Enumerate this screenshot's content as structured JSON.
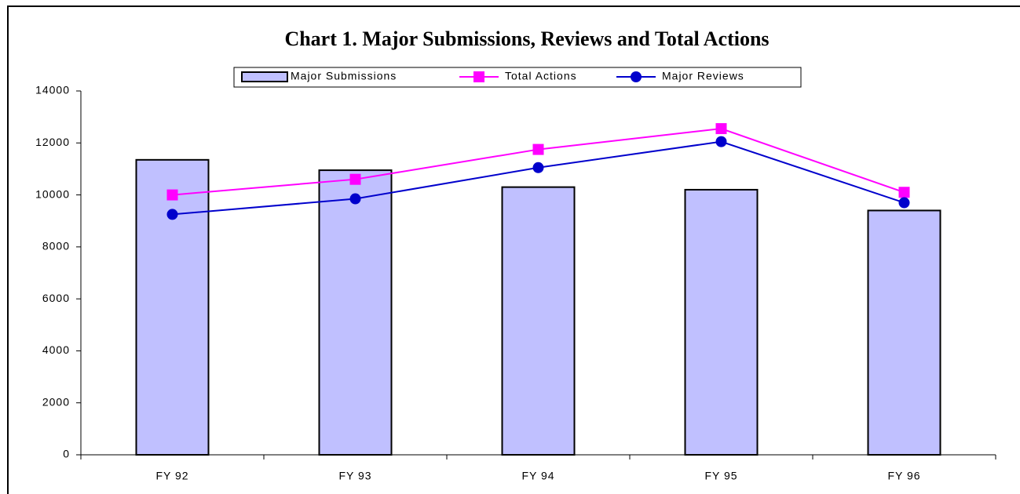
{
  "chart_data": {
    "type": "bar",
    "title": "Chart 1.  Major Submissions, Reviews and Total Actions",
    "categories": [
      "FY 92",
      "FY 93",
      "FY 94",
      "FY 95",
      "FY 96"
    ],
    "series": [
      {
        "name": "Major Submissions",
        "type": "bar",
        "color": "#c0c0ff",
        "values": [
          11350,
          10950,
          10300,
          10200,
          9400
        ]
      },
      {
        "name": "Total Actions",
        "type": "line",
        "marker": "square",
        "color": "#ff00ff",
        "values": [
          10000,
          10600,
          11750,
          12550,
          10100
        ]
      },
      {
        "name": "Major Reviews",
        "type": "line",
        "marker": "circle",
        "color": "#0000cc",
        "values": [
          9250,
          9850,
          11050,
          12050,
          9700
        ]
      }
    ],
    "ylim": [
      0,
      14000
    ],
    "yticks": [
      0,
      2000,
      4000,
      6000,
      8000,
      10000,
      12000,
      14000
    ],
    "grid": false,
    "legend": "top"
  }
}
